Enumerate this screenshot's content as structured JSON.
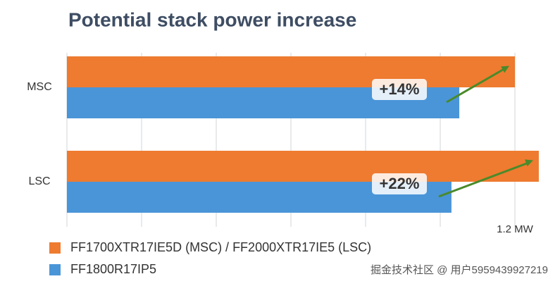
{
  "chart_data": {
    "type": "hbar",
    "title": "Potential stack power increase",
    "categories": [
      "MSC",
      "LSC"
    ],
    "series": [
      {
        "name": "FF1700XTR17IE5D (MSC) / FF2000XTR17IE5 (LSC)",
        "color": "#ee7b30",
        "values": [
          1.2,
          1.264
        ]
      },
      {
        "name": "FF1800R17IP5",
        "color": "#4a95d8",
        "values": [
          1.051,
          1.03
        ]
      }
    ],
    "annotations": [
      "+14%",
      "+22%"
    ],
    "xlim": [
      0,
      1.3
    ],
    "xticks": [
      {
        "value": 1.2,
        "label": "1.2 MW"
      }
    ],
    "grid_lines": [
      0,
      0.2,
      0.4,
      0.6,
      0.8,
      1.0,
      1.2
    ],
    "grid": true,
    "watermark": "掘金技术社区 @ 用户5959439927219"
  }
}
